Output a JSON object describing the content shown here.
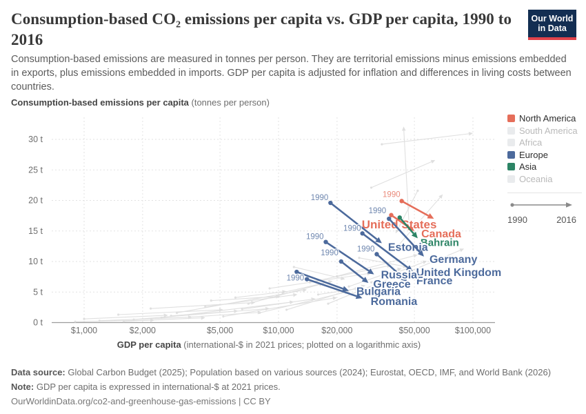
{
  "header": {
    "title": "Consumption-based CO₂ emissions per capita vs. GDP per capita, 1990 to 2016",
    "subtitle": "Consumption-based emissions are measured in tonnes per person. They are territorial emissions minus emissions embedded in exports, plus emissions embedded in imports. GDP per capita is adjusted for inflation and differences in living costs between countries.",
    "logo": {
      "line1": "Our World",
      "line2": "in Data"
    }
  },
  "legend": {
    "items": [
      {
        "label": "North America",
        "color": "#E56E5A",
        "active": true
      },
      {
        "label": "South America",
        "color": "#E9EBED",
        "active": false
      },
      {
        "label": "Africa",
        "color": "#E9EBED",
        "active": false
      },
      {
        "label": "Europe",
        "color": "#4C6A9C",
        "active": true
      },
      {
        "label": "Asia",
        "color": "#2C8465",
        "active": true
      },
      {
        "label": "Oceania",
        "color": "#E9EBED",
        "active": false
      }
    ],
    "timeline": {
      "start": "1990",
      "end": "2016"
    }
  },
  "chart_data": {
    "type": "scatter",
    "variant": "connected-scatter, arrows from 1990 to 2016",
    "title": "Consumption-based CO₂ emissions per capita vs. GDP per capita, 1990 to 2016",
    "period": {
      "start": "1990",
      "end": "2016"
    },
    "x": {
      "label": "GDP per capita",
      "label_note": "(international-$ in 2021 prices; plotted on a logarithmic axis)",
      "scale": "log",
      "ticks": [
        1000,
        2000,
        5000,
        10000,
        20000,
        50000,
        100000
      ],
      "tick_labels": [
        "$1,000",
        "$2,000",
        "$5,000",
        "$10,000",
        "$20,000",
        "$50,000",
        "$100,000"
      ]
    },
    "y": {
      "label": "Consumption-based emissions per capita",
      "label_note": "(tonnes per person)",
      "scale": "linear",
      "unit": "t",
      "ticks": [
        0,
        5,
        10,
        15,
        20,
        25,
        30
      ],
      "tick_labels": [
        "0 t",
        "5 t",
        "10 t",
        "15 t",
        "20 t",
        "25 t",
        "30 t"
      ],
      "range": [
        0,
        33
      ]
    },
    "series": [
      {
        "name": "United States",
        "region": "North America",
        "color": "#E56E5A",
        "start": {
          "gdp": 43000,
          "co2": 19.9
        },
        "end": {
          "gdp": 63000,
          "co2": 17.0
        },
        "year_label": true,
        "year_label_offset": [
          -2,
          -6
        ],
        "label_offset": [
          4,
          14
        ],
        "label_anchor": "end",
        "label_size": 17
      },
      {
        "name": "Canada",
        "region": "North America",
        "color": "#E56E5A",
        "start": {
          "gdp": 38000,
          "co2": 17.6
        },
        "end": {
          "gdp": 50000,
          "co2": 15.0
        },
        "year_label": false,
        "label_offset": [
          10,
          9
        ],
        "label_anchor": "start",
        "label_size": 16
      },
      {
        "name": "Bahrain",
        "region": "Asia",
        "color": "#2C8465",
        "start": {
          "gdp": 42000,
          "co2": 17.2
        },
        "end": {
          "gdp": 52000,
          "co2": 13.8
        },
        "year_label": false,
        "label_offset": [
          4,
          11
        ],
        "label_anchor": "start",
        "label_size": 15
      },
      {
        "name": "Estonia",
        "region": "Europe",
        "color": "#4C6A9C",
        "start": {
          "gdp": 18500,
          "co2": 19.6
        },
        "end": {
          "gdp": 34000,
          "co2": 13.0
        },
        "year_label": true,
        "year_label_offset": [
          -3,
          -4
        ],
        "label_offset": [
          9,
          11
        ],
        "label_anchor": "start",
        "label_size": 16
      },
      {
        "name": "Germany",
        "region": "Europe",
        "color": "#4C6A9C",
        "start": {
          "gdp": 37000,
          "co2": 17.0
        },
        "end": {
          "gdp": 56000,
          "co2": 10.8
        },
        "year_label": true,
        "year_label_offset": [
          -4,
          -8
        ],
        "label_offset": [
          8,
          9
        ],
        "label_anchor": "start",
        "label_size": 16
      },
      {
        "name": "United Kingdom",
        "region": "Europe",
        "color": "#4C6A9C",
        "start": {
          "gdp": 27000,
          "co2": 14.6
        },
        "end": {
          "gdp": 49000,
          "co2": 8.4
        },
        "year_label": true,
        "year_label_offset": [
          -2,
          -4
        ],
        "label_offset": [
          5,
          7
        ],
        "label_anchor": "start",
        "label_size": 16
      },
      {
        "name": "France",
        "region": "Europe",
        "color": "#4C6A9C",
        "start": {
          "gdp": 32000,
          "co2": 11.2
        },
        "end": {
          "gdp": 46000,
          "co2": 6.7
        },
        "year_label": true,
        "year_label_offset": [
          -3,
          -4
        ],
        "label_offset": [
          13,
          4
        ],
        "label_anchor": "start",
        "label_size": 16
      },
      {
        "name": "Russia",
        "region": "Europe",
        "color": "#4C6A9C",
        "start": {
          "gdp": 17500,
          "co2": 13.2
        },
        "end": {
          "gdp": 31000,
          "co2": 7.9
        },
        "year_label": true,
        "year_label_offset": [
          -3,
          -4
        ],
        "label_offset": [
          10,
          6
        ],
        "label_anchor": "start",
        "label_size": 16
      },
      {
        "name": "Greece",
        "region": "Europe",
        "color": "#4C6A9C",
        "start": {
          "gdp": 21000,
          "co2": 10.0
        },
        "end": {
          "gdp": 29000,
          "co2": 6.5
        },
        "year_label": true,
        "year_label_offset": [
          -4,
          -9
        ],
        "label_offset": [
          7,
          7
        ],
        "label_anchor": "start",
        "label_size": 16
      },
      {
        "name": "Bulgaria",
        "region": "Europe",
        "color": "#4C6A9C",
        "start": {
          "gdp": 12400,
          "co2": 8.3
        },
        "end": {
          "gdp": 23000,
          "co2": 5.2
        },
        "year_label": false,
        "label_offset": [
          11,
          6
        ],
        "label_anchor": "start",
        "label_size": 16
      },
      {
        "name": "Romania",
        "region": "Europe",
        "color": "#4C6A9C",
        "start": {
          "gdp": 14000,
          "co2": 7.1
        },
        "end": {
          "gdp": 27000,
          "co2": 4.0
        },
        "year_label": true,
        "year_label_offset": [
          -4,
          2
        ],
        "label_offset": [
          12,
          10
        ],
        "label_anchor": "start",
        "label_size": 16
      }
    ],
    "background_arrows": [
      [
        900,
        0.15,
        2300,
        0.4
      ],
      [
        1200,
        0.3,
        3600,
        0.9
      ],
      [
        1800,
        0.5,
        9000,
        2.3
      ],
      [
        2500,
        0.8,
        12000,
        3.4
      ],
      [
        1500,
        1.3,
        5200,
        2.1
      ],
      [
        3000,
        1.6,
        14000,
        5.4
      ],
      [
        4200,
        2.6,
        12500,
        4.6
      ],
      [
        5200,
        1.0,
        20000,
        4.1
      ],
      [
        7000,
        3.1,
        17000,
        6.4
      ],
      [
        9000,
        5.6,
        30000,
        8.1
      ],
      [
        6000,
        4.1,
        11000,
        5.1
      ],
      [
        11000,
        2.1,
        28000,
        6.1
      ],
      [
        14500,
        6.6,
        38000,
        9.4
      ],
      [
        16000,
        4.6,
        26000,
        5.6
      ],
      [
        20000,
        7.6,
        52000,
        11.1
      ],
      [
        26000,
        10.6,
        46000,
        9.1
      ],
      [
        30000,
        6.6,
        58000,
        10.1
      ],
      [
        34000,
        29.2,
        100000,
        31.0
      ],
      [
        40000,
        12.1,
        70000,
        21.0
      ],
      [
        52000,
        21.6,
        40000,
        14.6
      ],
      [
        64000,
        13.1,
        42000,
        12.6
      ],
      [
        2200,
        2.3,
        7600,
        3.3
      ],
      [
        3500,
        0.9,
        8200,
        1.7
      ],
      [
        1000,
        0.6,
        2700,
        1.2
      ],
      [
        12000,
        9.1,
        22000,
        7.1
      ],
      [
        18000,
        3.1,
        40000,
        7.6
      ],
      [
        8000,
        1.6,
        23000,
        5.1
      ],
      [
        45000,
        8.1,
        90000,
        12.1
      ],
      [
        30000,
        22.1,
        64000,
        26.6
      ],
      [
        47000,
        15.6,
        44000,
        32.1
      ],
      [
        4500,
        3.6,
        10200,
        4.3
      ],
      [
        2800,
        1.1,
        6200,
        1.9
      ],
      [
        1600,
        0.2,
        4200,
        0.8
      ],
      [
        6500,
        2.2,
        15500,
        3.9
      ],
      [
        10500,
        4.9,
        19000,
        6.8
      ],
      [
        23000,
        5.9,
        43000,
        8.9
      ]
    ]
  },
  "footer": {
    "source_label": "Data source:",
    "source_text": " Global Carbon Budget (2025); Population based on various sources (2024); Eurostat, OECD, IMF, and World Bank (2026)",
    "note_label": "Note:",
    "note_text": " GDP per capita is expressed in international-$ at 2021 prices.",
    "url_line": "OurWorldinData.org/co2-and-greenhouse-gas-emissions | CC BY"
  }
}
